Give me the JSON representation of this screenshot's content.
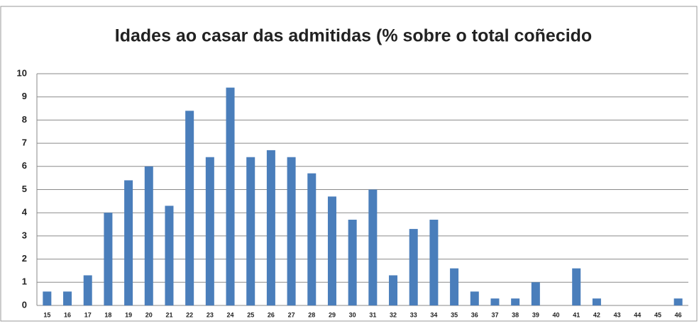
{
  "chart_data": {
    "type": "bar",
    "title": "Idades ao casar das admitidas (% sobre o total coñecido",
    "categories": [
      "15",
      "16",
      "17",
      "18",
      "19",
      "20",
      "21",
      "22",
      "23",
      "24",
      "25",
      "26",
      "27",
      "28",
      "29",
      "30",
      "31",
      "32",
      "33",
      "34",
      "35",
      "36",
      "37",
      "38",
      "39",
      "40",
      "41",
      "42",
      "43",
      "44",
      "45",
      "46"
    ],
    "values": [
      0.6,
      0.6,
      1.3,
      4,
      5.4,
      6,
      4.3,
      8.4,
      6.4,
      9.4,
      6.4,
      6.7,
      6.4,
      5.7,
      4.7,
      3.7,
      5,
      1.3,
      3.3,
      3.7,
      1.6,
      0.6,
      0.3,
      0.3,
      1,
      0,
      1.6,
      0.3,
      0,
      0,
      0,
      0.3
    ],
    "color": "#4a7ebb",
    "ylim": [
      0,
      10
    ],
    "yticks": [
      0,
      1,
      2,
      3,
      4,
      5,
      6,
      7,
      8,
      9,
      10
    ],
    "grid": true
  }
}
